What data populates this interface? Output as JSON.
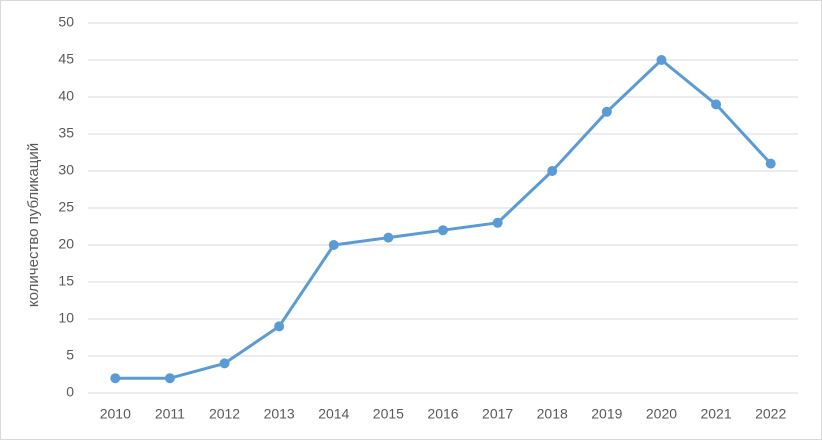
{
  "chart_data": {
    "type": "line",
    "y_label": "количество публикаций",
    "categories": [
      "2010",
      "2011",
      "2012",
      "2013",
      "2014",
      "2015",
      "2016",
      "2017",
      "2018",
      "2019",
      "2020",
      "2021",
      "2022"
    ],
    "series": [
      {
        "color": "#5b9bd5",
        "values": [
          2,
          2,
          4,
          9,
          20,
          21,
          22,
          23,
          30,
          38,
          45,
          39,
          31
        ]
      }
    ],
    "ylim": [
      0,
      50
    ],
    "yticks": [
      0,
      5,
      10,
      15,
      20,
      25,
      30,
      35,
      40,
      45,
      50
    ],
    "grid": true
  }
}
